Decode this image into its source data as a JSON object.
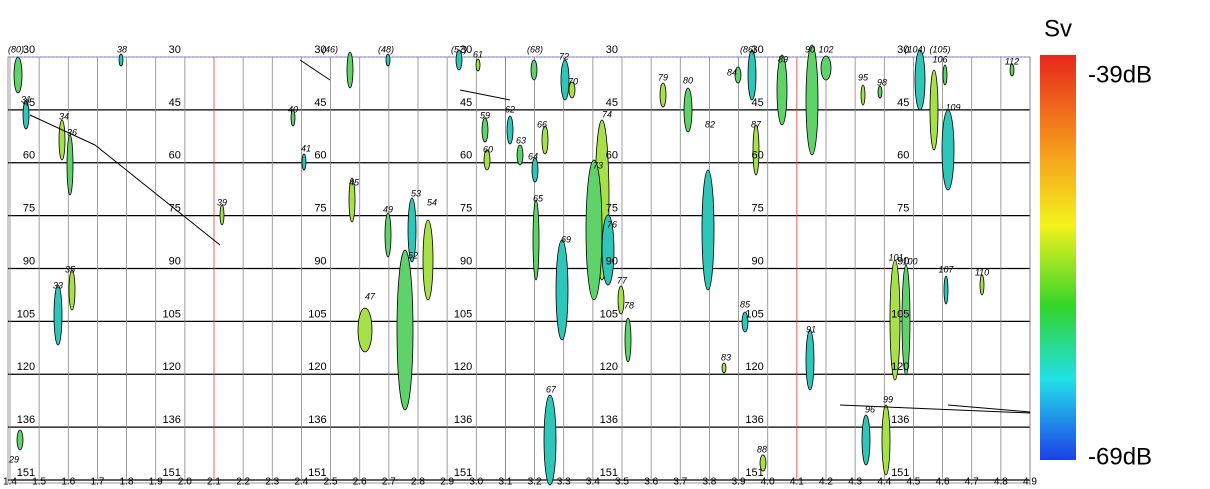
{
  "colorbar": {
    "title": "Sv",
    "max_label": "-39dB",
    "min_label": "-69dB"
  },
  "echogram": {
    "x_labels": [
      "1.4",
      "1.5",
      "1.6",
      "1.7",
      "1.8",
      "1.9",
      "2.0",
      "2.1",
      "2.2",
      "2.3",
      "2.4",
      "2.5",
      "2.6",
      "2.7",
      "2.8",
      "2.9",
      "3.0",
      "3.1",
      "3.2",
      "3.3",
      "3.4",
      "3.5",
      "3.6",
      "3.7",
      "3.8",
      "3.9",
      "4.0",
      "4.1",
      "4.2",
      "4.3",
      "4.4",
      "4.5",
      "4.6",
      "4.7",
      "4.8",
      "4.9"
    ],
    "highlight": [
      "2.1",
      "3.1",
      "4.1"
    ],
    "depth_labels": [
      30,
      45,
      60,
      75,
      90,
      105,
      120,
      136,
      151
    ],
    "schools": [
      "(80)",
      "31",
      "34",
      "36",
      "33",
      "35",
      "29",
      "38",
      "39",
      "40",
      "41",
      "45",
      "(46)",
      "(48)",
      "47",
      "49",
      "53",
      "54",
      "52",
      "(57)",
      "61",
      "(68)",
      "72",
      "70",
      "59",
      "62",
      "60",
      "63",
      "64",
      "66",
      "65",
      "69",
      "74",
      "73",
      "76",
      "77",
      "78",
      "67",
      "79",
      "80",
      "82",
      "83",
      "84",
      "(86)",
      "87",
      "89",
      "85",
      "88",
      "90",
      "91",
      "95",
      "98",
      "(104)",
      "(105)",
      "106",
      "109",
      "101",
      "100",
      "107",
      "110",
      "112",
      "96",
      "99",
      "102"
    ]
  }
}
